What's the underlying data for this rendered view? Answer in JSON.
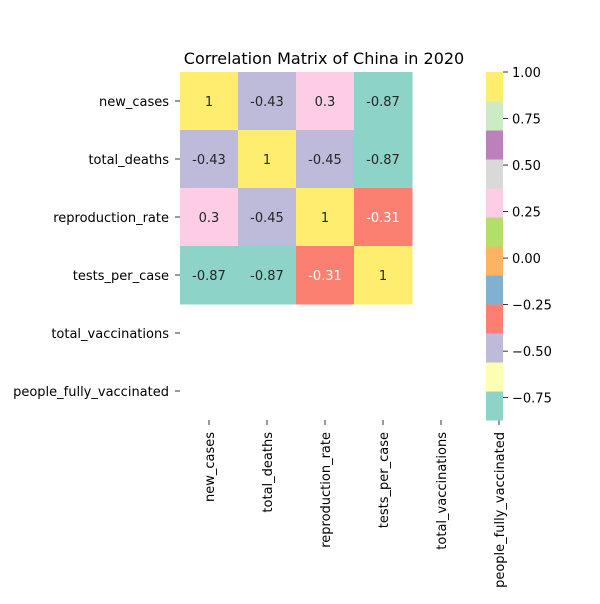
{
  "chart_data": {
    "type": "heatmap",
    "title": "Correlation Matrix of China in 2020",
    "variables": [
      "new_cases",
      "total_deaths",
      "reproduction_rate",
      "tests_per_case",
      "total_vaccinations",
      "people_fully_vaccinated"
    ],
    "matrix": [
      [
        1,
        -0.43,
        0.3,
        -0.87,
        null,
        null
      ],
      [
        -0.43,
        1,
        -0.45,
        -0.87,
        null,
        null
      ],
      [
        0.3,
        -0.45,
        1,
        -0.31,
        null,
        null
      ],
      [
        -0.87,
        -0.87,
        -0.31,
        1,
        null,
        null
      ],
      [
        null,
        null,
        null,
        null,
        null,
        null
      ],
      [
        null,
        null,
        null,
        null,
        null,
        null
      ]
    ],
    "annotations": [
      [
        "1",
        "-0.43",
        "0.3",
        "-0.87",
        "",
        ""
      ],
      [
        "-0.43",
        "1",
        "-0.45",
        "-0.87",
        "",
        ""
      ],
      [
        "0.3",
        "-0.45",
        "1",
        "-0.31",
        "",
        ""
      ],
      [
        "-0.87",
        "-0.87",
        "-0.31",
        "1",
        "",
        ""
      ],
      [
        "",
        "",
        "",
        "",
        "",
        ""
      ],
      [
        "",
        "",
        "",
        "",
        "",
        ""
      ]
    ],
    "colormap": "Set3",
    "colors": [
      "#8dd3c7",
      "#ffffb3",
      "#bebada",
      "#fb8072",
      "#80b1d3",
      "#fdb462",
      "#b3de69",
      "#fccde5",
      "#d9d9d9",
      "#bc80bd",
      "#ccebc5",
      "#ffed6f"
    ],
    "vmin": -0.87,
    "vmax": 1.0,
    "colorbar_ticks": [
      1.0,
      0.75,
      0.5,
      0.25,
      0.0,
      -0.25,
      -0.5,
      -0.75
    ],
    "colorbar_tick_labels": [
      "1.00",
      "0.75",
      "0.50",
      "0.25",
      "0.00",
      "−0.25",
      "−0.50",
      "−0.75"
    ],
    "legend_position": "right"
  }
}
